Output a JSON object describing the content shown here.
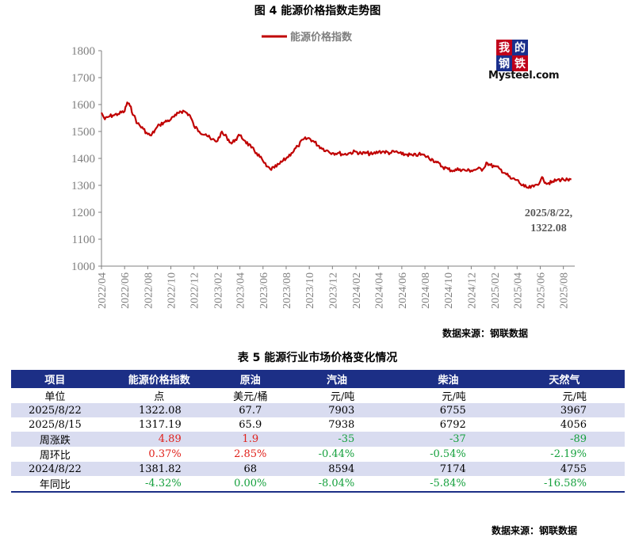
{
  "figure": {
    "title": "图 4  能源价格指数走势图",
    "source": "数据来源：钢联数据",
    "logo": {
      "chars": [
        "我",
        "的",
        "钢",
        "铁"
      ],
      "brand": "Mysteel.com"
    },
    "annotation": [
      "2025/8/22,",
      "1322.08"
    ]
  },
  "chart_data": {
    "type": "line",
    "series": [
      {
        "name": "能源价格指数",
        "color": "#c00000",
        "points": [
          [
            "2022-04-01",
            1570
          ],
          [
            "2022-04-10",
            1545
          ],
          [
            "2022-04-20",
            1555
          ],
          [
            "2022-05-01",
            1560
          ],
          [
            "2022-05-15",
            1565
          ],
          [
            "2022-06-01",
            1575
          ],
          [
            "2022-06-08",
            1608
          ],
          [
            "2022-06-15",
            1595
          ],
          [
            "2022-06-25",
            1560
          ],
          [
            "2022-07-05",
            1530
          ],
          [
            "2022-07-20",
            1510
          ],
          [
            "2022-08-01",
            1490
          ],
          [
            "2022-08-10",
            1485
          ],
          [
            "2022-08-20",
            1505
          ],
          [
            "2022-09-01",
            1525
          ],
          [
            "2022-09-15",
            1535
          ],
          [
            "2022-10-01",
            1545
          ],
          [
            "2022-10-15",
            1560
          ],
          [
            "2022-10-25",
            1575
          ],
          [
            "2022-11-05",
            1575
          ],
          [
            "2022-11-20",
            1560
          ],
          [
            "2022-12-01",
            1520
          ],
          [
            "2022-12-15",
            1500
          ],
          [
            "2023-01-01",
            1490
          ],
          [
            "2023-01-15",
            1470
          ],
          [
            "2023-02-01",
            1465
          ],
          [
            "2023-02-10",
            1495
          ],
          [
            "2023-02-25",
            1480
          ],
          [
            "2023-03-10",
            1455
          ],
          [
            "2023-03-20",
            1470
          ],
          [
            "2023-04-01",
            1485
          ],
          [
            "2023-04-15",
            1465
          ],
          [
            "2023-05-01",
            1440
          ],
          [
            "2023-05-15",
            1420
          ],
          [
            "2023-06-01",
            1390
          ],
          [
            "2023-06-10",
            1370
          ],
          [
            "2023-06-20",
            1360
          ],
          [
            "2023-07-01",
            1365
          ],
          [
            "2023-07-15",
            1380
          ],
          [
            "2023-08-01",
            1400
          ],
          [
            "2023-08-15",
            1420
          ],
          [
            "2023-09-01",
            1445
          ],
          [
            "2023-09-15",
            1470
          ],
          [
            "2023-10-01",
            1475
          ],
          [
            "2023-10-15",
            1460
          ],
          [
            "2023-11-01",
            1440
          ],
          [
            "2023-11-15",
            1430
          ],
          [
            "2023-12-01",
            1420
          ],
          [
            "2023-12-15",
            1420
          ],
          [
            "2024-01-01",
            1415
          ],
          [
            "2024-01-15",
            1420
          ],
          [
            "2024-02-01",
            1425
          ],
          [
            "2024-02-15",
            1418
          ],
          [
            "2024-03-01",
            1420
          ],
          [
            "2024-03-15",
            1415
          ],
          [
            "2024-04-01",
            1425
          ],
          [
            "2024-04-15",
            1425
          ],
          [
            "2024-05-01",
            1420
          ],
          [
            "2024-05-15",
            1425
          ],
          [
            "2024-06-01",
            1415
          ],
          [
            "2024-06-15",
            1415
          ],
          [
            "2024-07-01",
            1410
          ],
          [
            "2024-07-15",
            1415
          ],
          [
            "2024-08-01",
            1410
          ],
          [
            "2024-08-22",
            1395
          ],
          [
            "2024-09-01",
            1385
          ],
          [
            "2024-09-15",
            1370
          ],
          [
            "2024-10-01",
            1360
          ],
          [
            "2024-10-15",
            1355
          ],
          [
            "2024-11-01",
            1360
          ],
          [
            "2024-11-15",
            1355
          ],
          [
            "2024-12-01",
            1355
          ],
          [
            "2024-12-15",
            1360
          ],
          [
            "2025-01-01",
            1360
          ],
          [
            "2025-01-10",
            1385
          ],
          [
            "2025-01-20",
            1375
          ],
          [
            "2025-02-01",
            1370
          ],
          [
            "2025-02-15",
            1360
          ],
          [
            "2025-03-01",
            1345
          ],
          [
            "2025-03-15",
            1325
          ],
          [
            "2025-04-01",
            1320
          ],
          [
            "2025-04-10",
            1305
          ],
          [
            "2025-04-20",
            1295
          ],
          [
            "2025-05-01",
            1290
          ],
          [
            "2025-05-15",
            1295
          ],
          [
            "2025-06-01",
            1315
          ],
          [
            "2025-06-08",
            1328
          ],
          [
            "2025-06-15",
            1310
          ],
          [
            "2025-07-01",
            1310
          ],
          [
            "2025-07-15",
            1320
          ],
          [
            "2025-08-01",
            1322
          ],
          [
            "2025-08-15",
            1317
          ],
          [
            "2025-08-22",
            1322
          ]
        ]
      }
    ],
    "x_ticks": [
      "2022/04",
      "2022/06",
      "2022/08",
      "2022/10",
      "2022/12",
      "2023/02",
      "2023/04",
      "2023/06",
      "2023/08",
      "2023/10",
      "2023/12",
      "2024/02",
      "2024/04",
      "2024/06",
      "2024/08",
      "2024/10",
      "2024/12",
      "2025/02",
      "2025/04",
      "2025/06",
      "2025/08"
    ],
    "y_ticks": [
      1000,
      1100,
      1200,
      1300,
      1400,
      1500,
      1600,
      1700,
      1800
    ],
    "ylim": [
      1000,
      1800
    ],
    "xlim": [
      "2022-04-01",
      "2025-08-31"
    ],
    "legend": "top-center",
    "grid": false
  },
  "table": {
    "title": "表 5 能源行业市场价格变化情况",
    "source": "数据来源：钢联数据",
    "headers": [
      "项目",
      "能源价格指数",
      "原油",
      "汽油",
      "柴油",
      "天然气"
    ],
    "units": [
      "单位",
      "点",
      "美元/桶",
      "元/吨",
      "元/吨",
      "元/吨"
    ],
    "rows": [
      {
        "label": "2025/8/22",
        "values": [
          "1322.08",
          "67.7",
          "7903",
          "6755",
          "3967"
        ],
        "signs": [
          "",
          "",
          "",
          "",
          ""
        ]
      },
      {
        "label": "2025/8/15",
        "values": [
          "1317.19",
          "65.9",
          "7938",
          "6792",
          "4056"
        ],
        "signs": [
          "",
          "",
          "",
          "",
          ""
        ]
      },
      {
        "label": "周涨跌",
        "values": [
          "4.89",
          "1.9",
          "-35",
          "-37",
          "-89"
        ],
        "signs": [
          "pos",
          "pos",
          "neg",
          "neg",
          "neg"
        ]
      },
      {
        "label": "周环比",
        "values": [
          "0.37%",
          "2.85%",
          "-0.44%",
          "-0.54%",
          "-2.19%"
        ],
        "signs": [
          "pos",
          "pos",
          "neg",
          "neg",
          "neg"
        ]
      },
      {
        "label": "2024/8/22",
        "values": [
          "1381.82",
          "68",
          "8594",
          "7174",
          "4755"
        ],
        "signs": [
          "",
          "",
          "",
          "",
          ""
        ]
      },
      {
        "label": "年同比",
        "values": [
          "-4.32%",
          "0.00%",
          "-8.04%",
          "-5.84%",
          "-16.58%"
        ],
        "signs": [
          "neg",
          "neg",
          "neg",
          "neg",
          "neg"
        ]
      }
    ]
  }
}
